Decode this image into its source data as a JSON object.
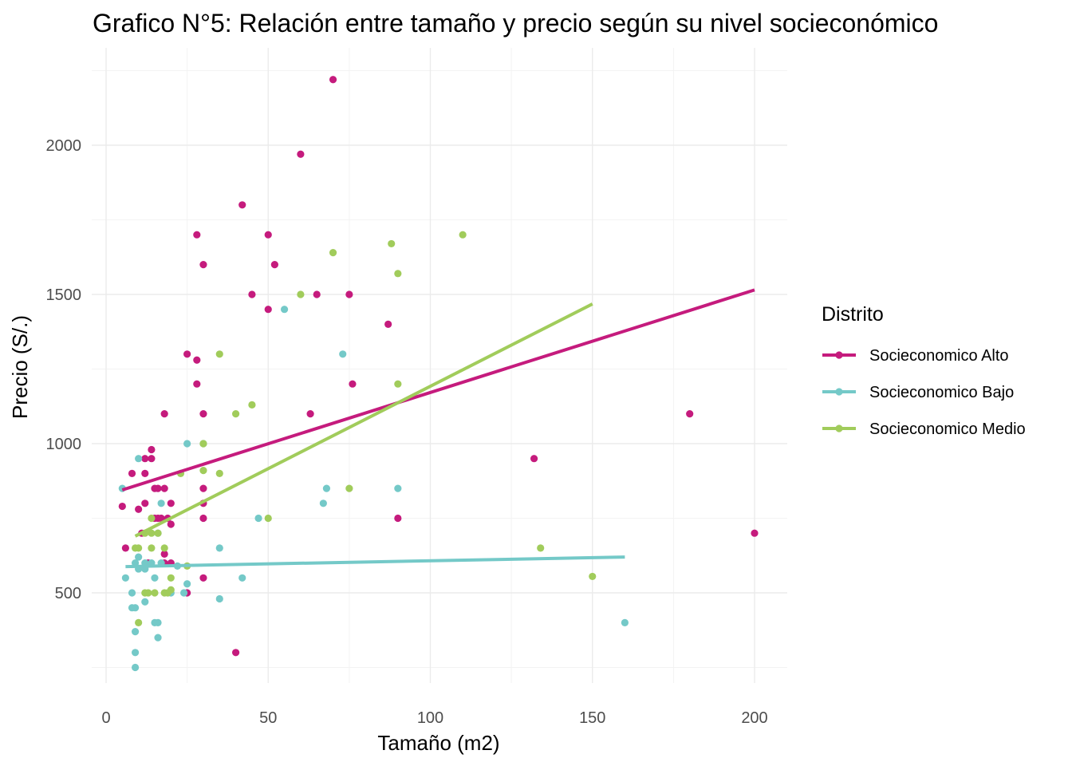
{
  "chart_data": {
    "type": "scatter",
    "title": "Grafico N°5: Relación entre tamaño y precio según su nivel socieconómico",
    "xlabel": "Tamaño (m2)",
    "ylabel": "Precio (S/.)",
    "xlim": [
      -5,
      210
    ],
    "ylim": [
      200,
      2280
    ],
    "x_ticks": [
      0,
      50,
      100,
      150,
      200
    ],
    "y_ticks": [
      500,
      1000,
      1500,
      2000
    ],
    "x_tick_labels": [
      "0",
      "50",
      "100",
      "150",
      "200"
    ],
    "y_tick_labels": [
      "500",
      "1000",
      "1500",
      "2000"
    ],
    "grid": true,
    "legend": {
      "title": "Distrito",
      "position": "right"
    },
    "series": [
      {
        "name": "Socieconomico Alto",
        "color": "#c51b7d",
        "points": [
          [
            5,
            790
          ],
          [
            6,
            650
          ],
          [
            8,
            900
          ],
          [
            10,
            780
          ],
          [
            12,
            950
          ],
          [
            12,
            900
          ],
          [
            12,
            800
          ],
          [
            11,
            700
          ],
          [
            14,
            980
          ],
          [
            14,
            950
          ],
          [
            15,
            850
          ],
          [
            16,
            850
          ],
          [
            15,
            750
          ],
          [
            16,
            750
          ],
          [
            17,
            750
          ],
          [
            18,
            850
          ],
          [
            18,
            630
          ],
          [
            18,
            600
          ],
          [
            19,
            750
          ],
          [
            20,
            800
          ],
          [
            20,
            730
          ],
          [
            20,
            600
          ],
          [
            18,
            1100
          ],
          [
            13,
            600
          ],
          [
            25,
            1300
          ],
          [
            25,
            500
          ],
          [
            28,
            1280
          ],
          [
            28,
            1200
          ],
          [
            28,
            1700
          ],
          [
            30,
            1600
          ],
          [
            30,
            1100
          ],
          [
            30,
            850
          ],
          [
            30,
            800
          ],
          [
            30,
            750
          ],
          [
            30,
            550
          ],
          [
            40,
            300
          ],
          [
            42,
            1800
          ],
          [
            45,
            1500
          ],
          [
            50,
            1700
          ],
          [
            50,
            1450
          ],
          [
            52,
            1600
          ],
          [
            60,
            1970
          ],
          [
            63,
            1100
          ],
          [
            65,
            1500
          ],
          [
            70,
            2220
          ],
          [
            75,
            1500
          ],
          [
            76,
            1200
          ],
          [
            87,
            1400
          ],
          [
            90,
            750
          ],
          [
            132,
            950
          ],
          [
            180,
            1100
          ],
          [
            200,
            700
          ]
        ],
        "trend": [
          [
            5,
            845
          ],
          [
            200,
            1515
          ]
        ]
      },
      {
        "name": "Socieconomico Bajo",
        "color": "#74c9c8",
        "points": [
          [
            5,
            850
          ],
          [
            6,
            550
          ],
          [
            8,
            500
          ],
          [
            8,
            450
          ],
          [
            9,
            450
          ],
          [
            9,
            370
          ],
          [
            9,
            300
          ],
          [
            9,
            250
          ],
          [
            9,
            600
          ],
          [
            10,
            950
          ],
          [
            10,
            620
          ],
          [
            10,
            580
          ],
          [
            12,
            600
          ],
          [
            12,
            580
          ],
          [
            12,
            470
          ],
          [
            14,
            600
          ],
          [
            15,
            550
          ],
          [
            15,
            400
          ],
          [
            16,
            400
          ],
          [
            16,
            350
          ],
          [
            16,
            700
          ],
          [
            17,
            800
          ],
          [
            17,
            600
          ],
          [
            20,
            500
          ],
          [
            22,
            590
          ],
          [
            24,
            500
          ],
          [
            25,
            530
          ],
          [
            25,
            1000
          ],
          [
            30,
            1000
          ],
          [
            35,
            650
          ],
          [
            35,
            480
          ],
          [
            42,
            550
          ],
          [
            47,
            750
          ],
          [
            55,
            1450
          ],
          [
            67,
            800
          ],
          [
            68,
            850
          ],
          [
            73,
            1300
          ],
          [
            90,
            850
          ],
          [
            160,
            400
          ]
        ],
        "trend": [
          [
            6,
            588
          ],
          [
            160,
            620
          ]
        ]
      },
      {
        "name": "Socieconomico Medio",
        "color": "#a1cc5b",
        "points": [
          [
            9,
            650
          ],
          [
            10,
            650
          ],
          [
            10,
            400
          ],
          [
            12,
            700
          ],
          [
            12,
            500
          ],
          [
            13,
            500
          ],
          [
            14,
            750
          ],
          [
            14,
            700
          ],
          [
            14,
            650
          ],
          [
            15,
            500
          ],
          [
            16,
            700
          ],
          [
            18,
            650
          ],
          [
            18,
            500
          ],
          [
            19,
            500
          ],
          [
            20,
            550
          ],
          [
            20,
            510
          ],
          [
            23,
            900
          ],
          [
            25,
            590
          ],
          [
            30,
            1000
          ],
          [
            30,
            910
          ],
          [
            35,
            1300
          ],
          [
            35,
            900
          ],
          [
            40,
            1100
          ],
          [
            45,
            1130
          ],
          [
            50,
            750
          ],
          [
            60,
            1500
          ],
          [
            70,
            1640
          ],
          [
            75,
            850
          ],
          [
            88,
            1670
          ],
          [
            90,
            1570
          ],
          [
            90,
            1200
          ],
          [
            110,
            1700
          ],
          [
            134,
            650
          ],
          [
            150,
            555
          ]
        ],
        "trend": [
          [
            9,
            690
          ],
          [
            150,
            1468
          ]
        ]
      }
    ]
  }
}
